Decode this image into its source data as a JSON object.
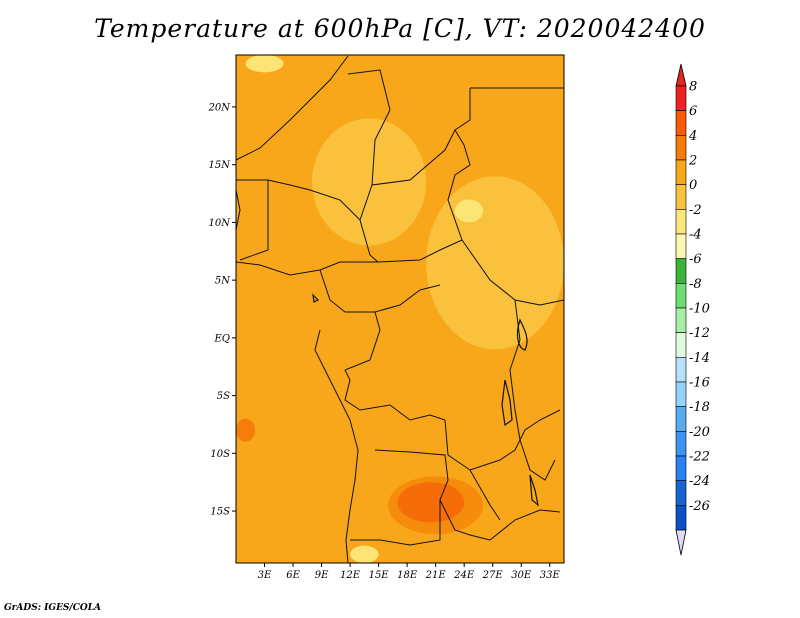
{
  "title": "Temperature at 600hPa [C], VT: 2020042400",
  "credit": "GrADS: IGES/COLA",
  "map": {
    "lon_range": [
      0,
      34.5
    ],
    "lat_range": [
      -19.5,
      24.5
    ],
    "lon_ticks": [
      {
        "value": 3,
        "label": "3E"
      },
      {
        "value": 6,
        "label": "6E"
      },
      {
        "value": 9,
        "label": "9E"
      },
      {
        "value": 12,
        "label": "12E"
      },
      {
        "value": 15,
        "label": "15E"
      },
      {
        "value": 18,
        "label": "18E"
      },
      {
        "value": 21,
        "label": "21E"
      },
      {
        "value": 24,
        "label": "24E"
      },
      {
        "value": 27,
        "label": "27E"
      },
      {
        "value": 30,
        "label": "30E"
      },
      {
        "value": 33,
        "label": "33E"
      }
    ],
    "lat_ticks": [
      {
        "value": 20,
        "label": "20N"
      },
      {
        "value": 15,
        "label": "15N"
      },
      {
        "value": 10,
        "label": "10N"
      },
      {
        "value": 5,
        "label": "5N"
      },
      {
        "value": 0,
        "label": "EQ"
      },
      {
        "value": -5,
        "label": "5S"
      },
      {
        "value": -10,
        "label": "10S"
      },
      {
        "value": -15,
        "label": "15S"
      }
    ],
    "base_color": "#f9a71a",
    "regions": [
      {
        "kind": "land",
        "color": "#fac23e",
        "lon": [
          20,
          34.5
        ],
        "lat": [
          -1,
          14
        ]
      },
      {
        "kind": "land",
        "color": "#fac23e",
        "lon": [
          8,
          20
        ],
        "lat": [
          8,
          19
        ]
      },
      {
        "kind": "land",
        "color": "#f48a0c",
        "lon": [
          16,
          26
        ],
        "lat": [
          -17,
          -12
        ]
      },
      {
        "kind": "land",
        "color": "#f46a0a",
        "lon": [
          17,
          24
        ],
        "lat": [
          -16,
          -12.5
        ]
      },
      {
        "kind": "land",
        "color": "#fce77a",
        "lon": [
          1,
          5
        ],
        "lat": [
          23,
          24.5
        ]
      },
      {
        "kind": "land",
        "color": "#fce77a",
        "lon": [
          12,
          15
        ],
        "lat": [
          -19.5,
          -18
        ]
      },
      {
        "kind": "land",
        "color": "#fce77a",
        "lon": [
          23,
          26
        ],
        "lat": [
          10,
          12
        ]
      },
      {
        "kind": "land",
        "color": "#f47a0a",
        "lon": [
          0,
          2
        ],
        "lat": [
          -9,
          -7
        ]
      }
    ]
  },
  "colorbar": {
    "levels": [
      "8",
      "6",
      "4",
      "2",
      "0",
      "-2",
      "-4",
      "-6",
      "-8",
      "-10",
      "-12",
      "-14",
      "-16",
      "-18",
      "-20",
      "-22",
      "-24",
      "-26"
    ],
    "colors": [
      "#ee2020",
      "#f85a0a",
      "#f47a0a",
      "#f9a71a",
      "#fac23e",
      "#fce77a",
      "#fcf8b0",
      "#3cb43c",
      "#6ede6e",
      "#a6f0a6",
      "#e0fae0",
      "#b5e1fa",
      "#96d3fa",
      "#5aaaf0",
      "#3c96f0",
      "#2882f0",
      "#1464d2",
      "#0a50c8",
      "#001e82"
    ],
    "top_color": "#e0281e",
    "bottom_color": "#dcdcf5"
  }
}
